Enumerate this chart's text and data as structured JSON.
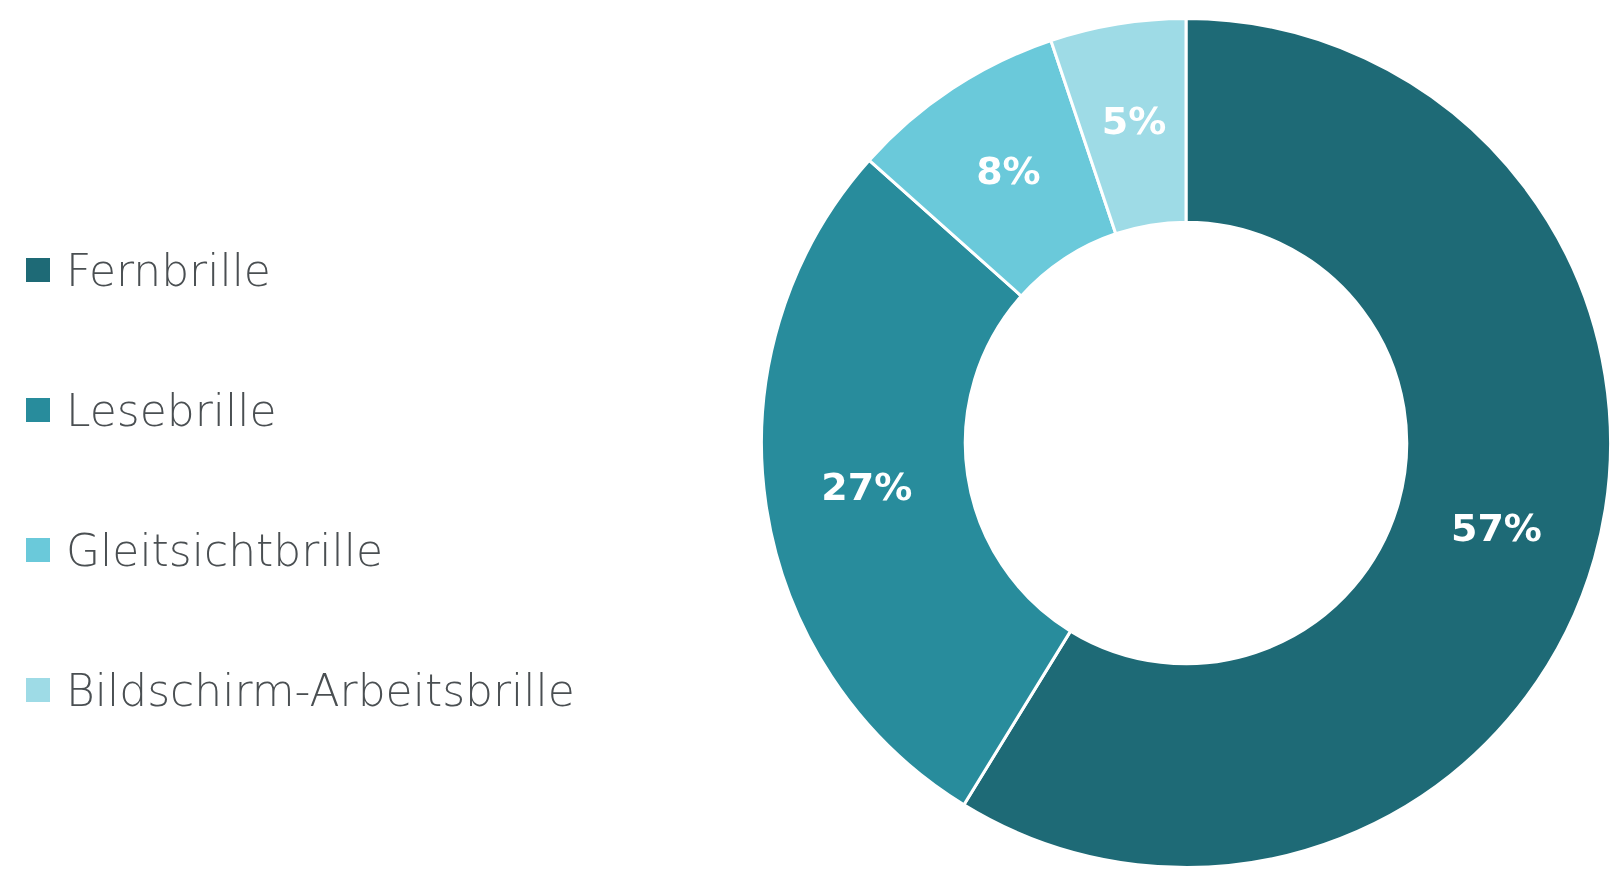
{
  "chart_data": {
    "type": "donut",
    "categories": [
      "Fernbrille",
      "Lesebrille",
      "Gleitsichtbrille",
      "Bildschirm-Arbeitsbrille"
    ],
    "values": [
      57,
      27,
      8,
      5
    ],
    "colors": [
      "#1e6a76",
      "#288c9c",
      "#6ac9da",
      "#9edbe6"
    ],
    "value_labels": [
      "57%",
      "27%",
      "8%",
      "5%"
    ],
    "legend": "left"
  }
}
